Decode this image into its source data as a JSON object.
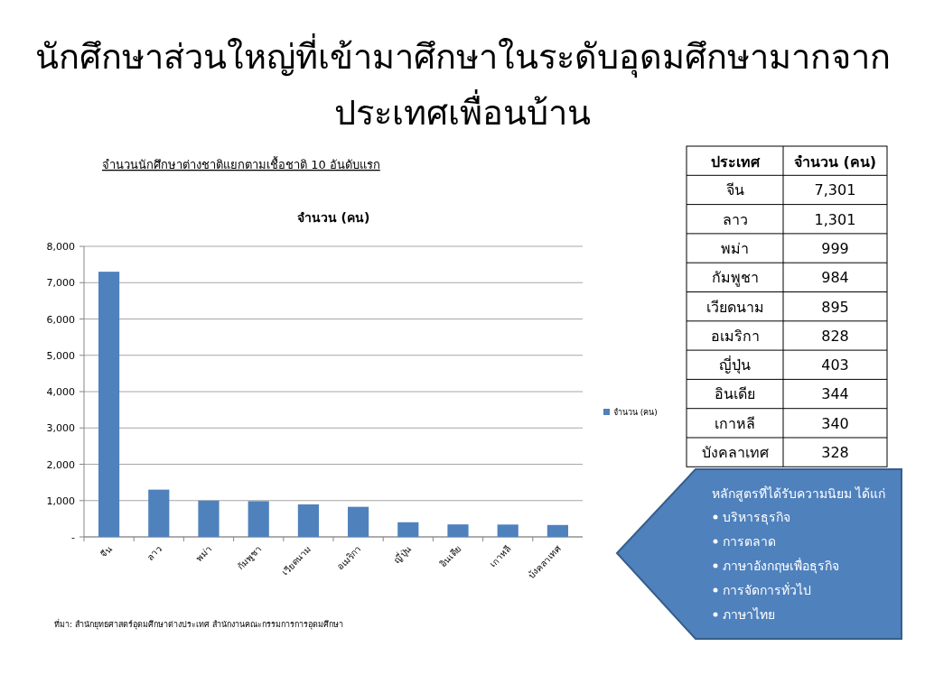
{
  "chart_data": [
    {
      "type": "bar",
      "title": "นักศึกษาส่วนใหญ่ที่เข้ามาศึกษาในระดับอุดมศึกษามากจากประเทศเพื่อนบ้าน",
      "subtitle": "จำนวนนักศึกษาต่างชาติแยกตามเชื้อชาติ 10 อันดับแรก",
      "categories": [
        "จีน",
        "ลาว",
        "พม่า",
        "กัมพูชา",
        "เวียดนาม",
        "อเมริกา",
        "ญี่ปุ่น",
        "อินเดีย",
        "เกาหลี",
        "บังคลาเทศ"
      ],
      "series": [
        {
          "name": "จำนวน (คน)",
          "color": "#4f81bd",
          "values": [
            7301,
            1301,
            999,
            984,
            895,
            828,
            403,
            344,
            340,
            328
          ]
        }
      ],
      "ylim": [
        0,
        8000
      ],
      "yticks": [
        {
          "value": 0,
          "label": "-"
        },
        {
          "value": 1000,
          "label": "1,000"
        },
        {
          "value": 2000,
          "label": "2,000"
        },
        {
          "value": 3000,
          "label": "3,000"
        },
        {
          "value": 4000,
          "label": "4,000"
        },
        {
          "value": 5000,
          "label": "5,000"
        },
        {
          "value": 6000,
          "label": "6,000"
        },
        {
          "value": 7000,
          "label": "7,000"
        },
        {
          "value": 8000,
          "label": "8,000"
        }
      ],
      "grid": "y",
      "legend": "right",
      "annotations": [
        "จำนวน (คน)",
        "ที่มา: สำนักยุทธศาสตร์อุดมศึกษาต่างประเทศ สำนักงานคณะกรรมการการอุดมศึกษา",
        "หลักสูตรที่ได้รับความนิยม ได้แก่",
        "บริหารธุรกิจ",
        "การตลาด",
        "ภาษาอังกฤษเพื่อธุรกิจ",
        "การจัดการทั่วไป",
        "ภาษาไทย"
      ]
    },
    {
      "type": "other",
      "categories": [
        "จีน",
        "ลาว",
        "พม่า",
        "กัมพูชา",
        "เวียดนาม",
        "อเมริกา",
        "ญี่ปุ่น",
        "อินเดีย",
        "เกาหลี",
        "บังคลาเทศ"
      ],
      "annotations": [
        "ประเทศ",
        "จำนวน (คน)",
        "7,301",
        "1,301",
        "999",
        "984",
        "895",
        "828",
        "403",
        "344",
        "340",
        "328"
      ]
    }
  ]
}
